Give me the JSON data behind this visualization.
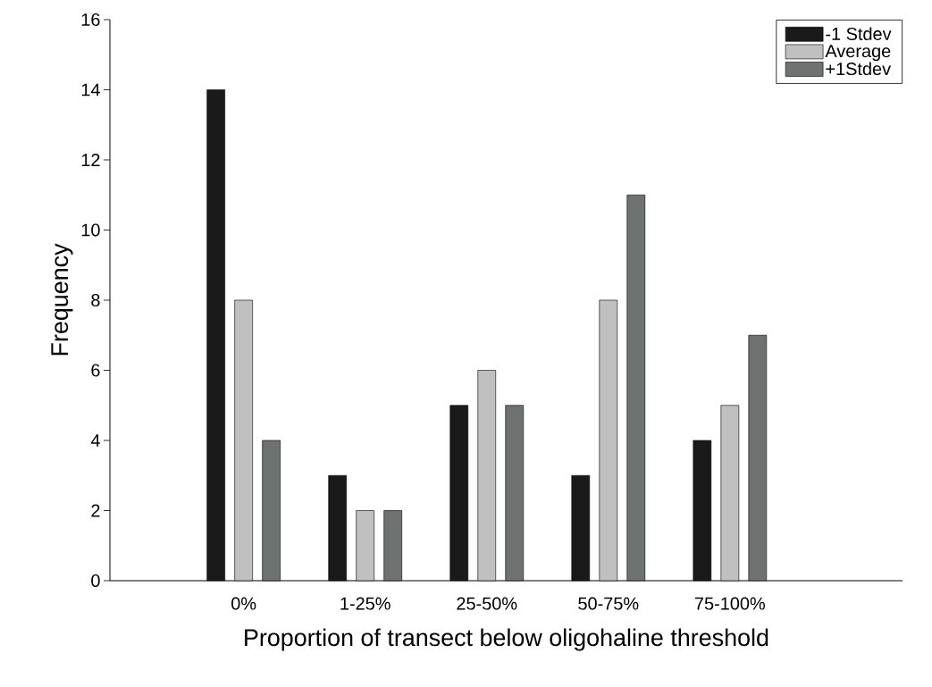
{
  "chart_data": {
    "type": "bar",
    "xlabel": "Proportion of transect below oligohaline threshold",
    "ylabel": "Frequency",
    "categories": [
      "0%",
      "1-25%",
      "25-50%",
      "50-75%",
      "75-100%"
    ],
    "series": [
      {
        "name": "-1 Stdev",
        "color": "#1a1a1a",
        "values": [
          14,
          3,
          5,
          3,
          4
        ]
      },
      {
        "name": "Average",
        "color": "#c0c0c0",
        "values": [
          8,
          2,
          6,
          8,
          5
        ]
      },
      {
        "name": "+1Stdev",
        "color": "#6e7270",
        "values": [
          4,
          2,
          5,
          11,
          7
        ]
      }
    ],
    "ylim": [
      0,
      16
    ],
    "yticks": [
      0,
      2,
      4,
      6,
      8,
      10,
      12,
      14,
      16
    ],
    "legend": "top right"
  }
}
